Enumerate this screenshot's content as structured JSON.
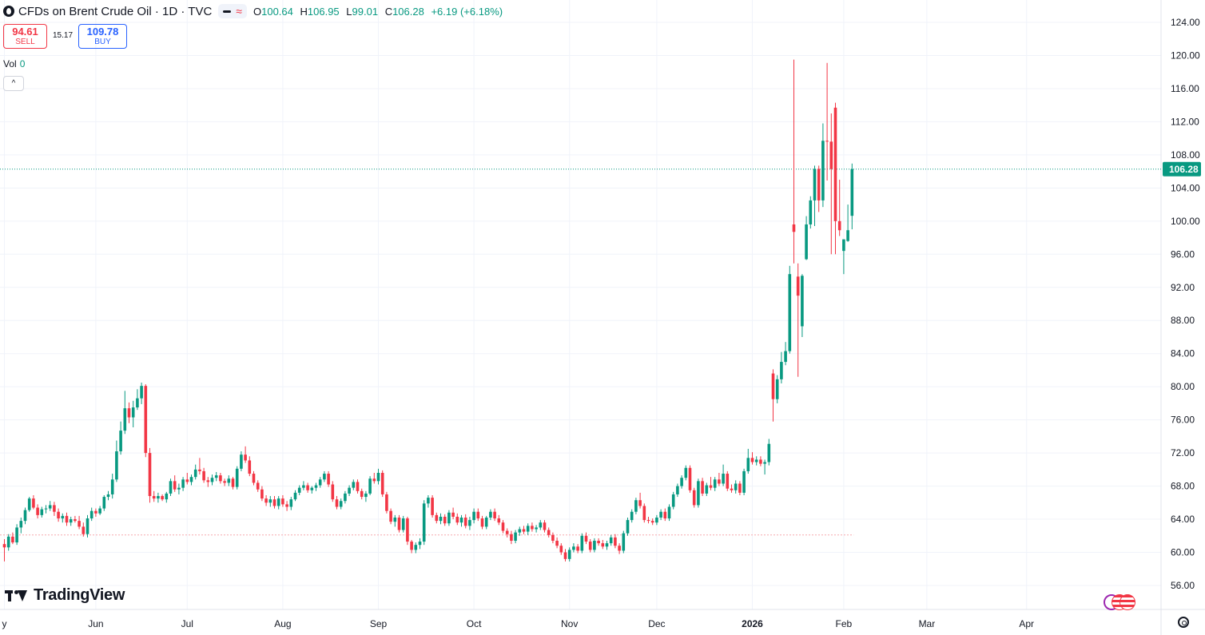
{
  "header": {
    "title": "CFDs on Brent Crude Oil · 1D · TVC",
    "ohlc": {
      "o_label": "O",
      "o": "100.64",
      "h_label": "H",
      "h": "106.95",
      "l_label": "L",
      "l": "99.01",
      "c_label": "C",
      "c": "106.28",
      "change": "+6.19 (+6.18%)"
    }
  },
  "trade": {
    "sell_price": "94.61",
    "sell_label": "SELL",
    "spread": "15.17",
    "buy_price": "109.78",
    "buy_label": "BUY"
  },
  "volume": {
    "label": "Vol",
    "value": "0"
  },
  "collapse_icon": "chevron-up-icon",
  "brand": {
    "name": "TradingView"
  },
  "colors": {
    "up": "#089981",
    "down": "#f23645",
    "grid": "#f0f3fa",
    "text": "#131722"
  },
  "chart_data": {
    "type": "candlestick",
    "ylim": [
      54,
      126
    ],
    "y_ticks": [
      56,
      60,
      64,
      68,
      72,
      76,
      80,
      84,
      88,
      92,
      96,
      100,
      104,
      108,
      112,
      116,
      120,
      124
    ],
    "y_tick_labels": [
      "56.00",
      "60.00",
      "64.00",
      "68.00",
      "72.00",
      "76.00",
      "80.00",
      "84.00",
      "88.00",
      "92.00",
      "96.00",
      "100.00",
      "104.00",
      "108.00",
      "112.00",
      "116.00",
      "120.00",
      "124.00"
    ],
    "x_labels": [
      {
        "text": "y",
        "bar": 0
      },
      {
        "text": "Jun",
        "bar": 22
      },
      {
        "text": "Jul",
        "bar": 44
      },
      {
        "text": "Aug",
        "bar": 67
      },
      {
        "text": "Sep",
        "bar": 90
      },
      {
        "text": "Oct",
        "bar": 113
      },
      {
        "text": "Nov",
        "bar": 136
      },
      {
        "text": "Dec",
        "bar": 157
      },
      {
        "text": "2026",
        "bar": 180
      },
      {
        "text": "Feb",
        "bar": 202
      },
      {
        "text": "Mar",
        "bar": 222
      },
      {
        "text": "Apr",
        "bar": 246
      }
    ],
    "last_price": 106.28,
    "last_price_label": "106.28",
    "reference_price": 62.1,
    "ohlc": [
      [
        61.0,
        61.6,
        58.9,
        60.6
      ],
      [
        60.6,
        62.2,
        60.2,
        61.9
      ],
      [
        61.9,
        62.4,
        61.0,
        61.2
      ],
      [
        61.2,
        63.4,
        60.9,
        63.0
      ],
      [
        63.0,
        64.2,
        62.3,
        63.8
      ],
      [
        63.8,
        65.4,
        63.4,
        65.1
      ],
      [
        65.1,
        66.7,
        64.9,
        66.5
      ],
      [
        66.5,
        66.9,
        65.2,
        65.4
      ],
      [
        65.4,
        65.8,
        64.1,
        64.5
      ],
      [
        64.5,
        65.5,
        64.2,
        65.2
      ],
      [
        65.2,
        65.7,
        64.7,
        65.3
      ],
      [
        65.3,
        66.2,
        65.0,
        65.7
      ],
      [
        65.7,
        66.1,
        64.4,
        64.9
      ],
      [
        64.9,
        65.3,
        63.7,
        64.1
      ],
      [
        64.1,
        64.7,
        63.6,
        64.4
      ],
      [
        64.4,
        64.8,
        63.2,
        63.6
      ],
      [
        63.6,
        64.3,
        63.2,
        64.0
      ],
      [
        64.0,
        64.4,
        63.6,
        63.8
      ],
      [
        63.8,
        64.4,
        62.8,
        63.1
      ],
      [
        63.1,
        63.6,
        61.9,
        62.2
      ],
      [
        62.2,
        64.5,
        61.8,
        64.1
      ],
      [
        64.1,
        65.4,
        63.8,
        65.0
      ],
      [
        65.0,
        65.3,
        64.3,
        64.7
      ],
      [
        64.7,
        65.6,
        64.5,
        65.3
      ],
      [
        65.3,
        66.9,
        65.0,
        66.7
      ],
      [
        66.7,
        67.4,
        66.3,
        67.0
      ],
      [
        67.0,
        69.5,
        66.5,
        68.8
      ],
      [
        68.8,
        73.5,
        68.5,
        72.2
      ],
      [
        72.2,
        75.8,
        71.8,
        74.7
      ],
      [
        74.7,
        79.5,
        74.3,
        77.4
      ],
      [
        77.4,
        78.1,
        75.6,
        76.3
      ],
      [
        76.3,
        78.3,
        75.1,
        77.5
      ],
      [
        77.5,
        79.7,
        77.2,
        78.6
      ],
      [
        78.6,
        80.5,
        77.9,
        80.1
      ],
      [
        80.1,
        80.3,
        71.5,
        72.0
      ],
      [
        72.0,
        72.6,
        66.0,
        66.8
      ],
      [
        66.8,
        67.4,
        66.1,
        66.5
      ],
      [
        66.5,
        67.2,
        66.0,
        66.8
      ],
      [
        66.8,
        67.0,
        66.2,
        66.4
      ],
      [
        66.4,
        67.3,
        66.0,
        67.1
      ],
      [
        67.1,
        68.9,
        66.8,
        68.6
      ],
      [
        68.6,
        69.3,
        67.3,
        67.6
      ],
      [
        67.6,
        68.3,
        67.0,
        67.8
      ],
      [
        67.8,
        69.1,
        67.4,
        68.8
      ],
      [
        68.8,
        69.6,
        68.2,
        68.5
      ],
      [
        68.5,
        69.4,
        68.1,
        69.1
      ],
      [
        69.1,
        70.6,
        68.8,
        70.0
      ],
      [
        70.0,
        71.4,
        69.4,
        69.8
      ],
      [
        69.8,
        70.2,
        68.4,
        68.7
      ],
      [
        68.7,
        69.1,
        67.9,
        68.5
      ],
      [
        68.5,
        69.4,
        68.1,
        69.0
      ],
      [
        69.0,
        69.7,
        68.6,
        69.3
      ],
      [
        69.3,
        69.6,
        68.3,
        68.6
      ],
      [
        68.6,
        68.9,
        68.0,
        68.4
      ],
      [
        68.4,
        69.3,
        68.0,
        68.9
      ],
      [
        68.9,
        69.1,
        67.6,
        67.9
      ],
      [
        67.9,
        70.4,
        67.6,
        70.1
      ],
      [
        70.1,
        72.2,
        69.8,
        71.8
      ],
      [
        71.8,
        72.8,
        70.8,
        71.1
      ],
      [
        71.1,
        71.6,
        69.2,
        69.5
      ],
      [
        69.5,
        69.8,
        68.1,
        68.4
      ],
      [
        68.4,
        68.7,
        67.3,
        67.6
      ],
      [
        67.6,
        68.0,
        66.2,
        66.5
      ],
      [
        66.5,
        66.9,
        65.6,
        66.0
      ],
      [
        66.0,
        66.8,
        65.5,
        66.4
      ],
      [
        66.4,
        66.8,
        65.3,
        65.6
      ],
      [
        65.6,
        66.8,
        65.2,
        66.5
      ],
      [
        66.5,
        66.9,
        65.5,
        65.8
      ],
      [
        65.8,
        66.2,
        65.0,
        65.5
      ],
      [
        65.5,
        66.7,
        65.1,
        66.4
      ],
      [
        66.4,
        67.5,
        66.2,
        67.2
      ],
      [
        67.2,
        68.1,
        66.9,
        67.8
      ],
      [
        67.8,
        68.6,
        67.5,
        68.1
      ],
      [
        68.1,
        68.4,
        67.2,
        67.5
      ],
      [
        67.5,
        68.0,
        67.1,
        67.8
      ],
      [
        67.8,
        68.4,
        67.4,
        68.1
      ],
      [
        68.1,
        69.1,
        67.8,
        68.8
      ],
      [
        68.8,
        69.8,
        68.5,
        69.5
      ],
      [
        69.5,
        69.8,
        67.9,
        68.2
      ],
      [
        68.2,
        68.6,
        66.1,
        66.4
      ],
      [
        66.4,
        66.8,
        65.2,
        65.5
      ],
      [
        65.5,
        66.5,
        65.2,
        66.2
      ],
      [
        66.2,
        67.4,
        65.9,
        67.1
      ],
      [
        67.1,
        68.1,
        66.8,
        67.8
      ],
      [
        67.8,
        68.8,
        67.5,
        68.5
      ],
      [
        68.5,
        68.8,
        67.1,
        67.4
      ],
      [
        67.4,
        67.7,
        66.4,
        66.7
      ],
      [
        66.7,
        67.4,
        66.1,
        67.1
      ],
      [
        67.1,
        69.2,
        66.9,
        68.9
      ],
      [
        68.9,
        69.6,
        68.3,
        68.6
      ],
      [
        68.6,
        70.1,
        68.2,
        69.6
      ],
      [
        69.6,
        69.9,
        66.7,
        67.0
      ],
      [
        67.0,
        67.3,
        64.7,
        65.0
      ],
      [
        65.0,
        65.3,
        63.4,
        63.7
      ],
      [
        63.7,
        64.5,
        63.1,
        64.2
      ],
      [
        64.2,
        64.5,
        62.4,
        62.7
      ],
      [
        62.7,
        64.4,
        62.4,
        64.1
      ],
      [
        64.1,
        64.3,
        60.9,
        61.3
      ],
      [
        61.3,
        61.5,
        59.9,
        60.3
      ],
      [
        60.3,
        61.2,
        59.9,
        60.9
      ],
      [
        60.9,
        61.7,
        60.4,
        61.3
      ],
      [
        61.3,
        66.3,
        60.9,
        65.9
      ],
      [
        65.9,
        66.9,
        65.4,
        66.6
      ],
      [
        66.6,
        66.9,
        64.2,
        64.5
      ],
      [
        64.5,
        64.8,
        63.5,
        63.8
      ],
      [
        63.8,
        64.7,
        63.4,
        64.3
      ],
      [
        64.3,
        64.6,
        63.2,
        63.5
      ],
      [
        63.5,
        65.1,
        63.2,
        64.8
      ],
      [
        64.8,
        65.4,
        64.0,
        64.3
      ],
      [
        64.3,
        64.7,
        63.3,
        63.6
      ],
      [
        63.6,
        64.5,
        63.1,
        64.2
      ],
      [
        64.2,
        64.6,
        62.9,
        63.2
      ],
      [
        63.2,
        64.3,
        62.7,
        63.9
      ],
      [
        63.9,
        65.3,
        63.5,
        64.9
      ],
      [
        64.9,
        65.3,
        63.8,
        64.1
      ],
      [
        64.1,
        64.4,
        62.8,
        63.1
      ],
      [
        63.1,
        64.4,
        62.8,
        64.2
      ],
      [
        64.2,
        65.2,
        63.9,
        64.9
      ],
      [
        64.9,
        65.3,
        63.8,
        64.1
      ],
      [
        64.1,
        64.5,
        63.3,
        63.6
      ],
      [
        63.6,
        63.9,
        62.3,
        62.6
      ],
      [
        62.6,
        62.9,
        61.8,
        62.2
      ],
      [
        62.2,
        62.6,
        61.0,
        61.4
      ],
      [
        61.4,
        62.7,
        61.1,
        62.4
      ],
      [
        62.4,
        63.1,
        62.0,
        62.8
      ],
      [
        62.8,
        63.2,
        62.2,
        62.5
      ],
      [
        62.5,
        63.5,
        62.1,
        63.2
      ],
      [
        63.2,
        63.6,
        62.5,
        62.8
      ],
      [
        62.8,
        63.3,
        62.4,
        63.0
      ],
      [
        63.0,
        63.9,
        62.7,
        63.6
      ],
      [
        63.6,
        63.9,
        62.4,
        62.7
      ],
      [
        62.7,
        63.0,
        61.8,
        62.1
      ],
      [
        62.1,
        62.4,
        61.1,
        61.4
      ],
      [
        61.4,
        61.8,
        60.5,
        60.8
      ],
      [
        60.8,
        61.1,
        59.7,
        60.0
      ],
      [
        60.0,
        60.4,
        58.9,
        59.2
      ],
      [
        59.2,
        60.6,
        58.9,
        60.3
      ],
      [
        60.3,
        61.1,
        60.0,
        60.7
      ],
      [
        60.7,
        61.0,
        59.9,
        60.2
      ],
      [
        60.2,
        62.3,
        59.9,
        62.0
      ],
      [
        62.0,
        62.4,
        61.0,
        61.3
      ],
      [
        61.3,
        61.6,
        60.0,
        60.3
      ],
      [
        60.3,
        61.7,
        60.0,
        61.4
      ],
      [
        61.4,
        61.7,
        60.8,
        61.1
      ],
      [
        61.1,
        61.5,
        60.4,
        60.7
      ],
      [
        60.7,
        61.4,
        60.3,
        61.1
      ],
      [
        61.1,
        62.1,
        60.8,
        61.8
      ],
      [
        61.8,
        62.2,
        60.5,
        60.8
      ],
      [
        60.8,
        61.1,
        59.8,
        60.2
      ],
      [
        60.2,
        62.6,
        59.9,
        62.3
      ],
      [
        62.3,
        64.2,
        62.0,
        63.9
      ],
      [
        63.9,
        65.2,
        63.6,
        64.9
      ],
      [
        64.9,
        66.6,
        64.6,
        66.3
      ],
      [
        66.3,
        67.2,
        65.3,
        65.6
      ],
      [
        65.6,
        65.9,
        63.6,
        63.9
      ],
      [
        63.9,
        64.3,
        63.5,
        63.8
      ],
      [
        63.8,
        64.1,
        63.3,
        63.6
      ],
      [
        63.6,
        64.5,
        63.3,
        64.2
      ],
      [
        64.2,
        65.2,
        63.9,
        64.9
      ],
      [
        64.9,
        65.3,
        63.8,
        64.1
      ],
      [
        64.1,
        65.8,
        63.8,
        65.5
      ],
      [
        65.5,
        67.3,
        65.2,
        67.0
      ],
      [
        67.0,
        68.3,
        66.7,
        68.0
      ],
      [
        68.0,
        69.3,
        67.7,
        69.0
      ],
      [
        69.0,
        70.5,
        68.7,
        70.2
      ],
      [
        70.2,
        70.5,
        67.2,
        67.5
      ],
      [
        67.5,
        67.8,
        65.4,
        65.7
      ],
      [
        65.7,
        68.9,
        65.4,
        68.6
      ],
      [
        68.6,
        69.0,
        66.8,
        67.1
      ],
      [
        67.1,
        68.4,
        66.8,
        68.1
      ],
      [
        68.1,
        69.1,
        67.5,
        67.8
      ],
      [
        67.8,
        69.1,
        67.4,
        68.8
      ],
      [
        68.8,
        69.6,
        68.0,
        68.3
      ],
      [
        68.3,
        70.6,
        68.0,
        69.5
      ],
      [
        69.5,
        69.8,
        67.4,
        67.7
      ],
      [
        67.7,
        68.2,
        67.2,
        67.5
      ],
      [
        67.5,
        68.7,
        67.1,
        68.3
      ],
      [
        68.3,
        68.6,
        66.9,
        67.2
      ],
      [
        67.2,
        70.1,
        66.9,
        69.8
      ],
      [
        69.8,
        72.5,
        69.5,
        71.4
      ],
      [
        71.4,
        72.1,
        70.6,
        70.9
      ],
      [
        70.9,
        71.6,
        70.5,
        71.2
      ],
      [
        71.2,
        71.6,
        70.4,
        70.7
      ],
      [
        70.7,
        71.2,
        69.4,
        70.9
      ],
      [
        70.9,
        73.7,
        70.5,
        73.1
      ],
      [
        81.6,
        82.1,
        75.8,
        78.5
      ],
      [
        78.5,
        81.4,
        78.0,
        80.9
      ],
      [
        80.9,
        84.2,
        80.4,
        83.0
      ],
      [
        83.0,
        85.4,
        82.6,
        84.3
      ],
      [
        84.3,
        94.6,
        84.0,
        93.6
      ],
      [
        99.6,
        119.5,
        94.9,
        98.7
      ],
      [
        93.3,
        94.9,
        81.2,
        91.0
      ],
      [
        87.3,
        93.6,
        86.0,
        93.4
      ],
      [
        95.4,
        100.6,
        95.3,
        99.6
      ],
      [
        99.6,
        103.0,
        99.1,
        102.5
      ],
      [
        102.5,
        106.7,
        99.4,
        106.3
      ],
      [
        106.3,
        106.7,
        101.1,
        102.5
      ],
      [
        102.5,
        111.8,
        101.7,
        109.7
      ],
      [
        109.7,
        119.1,
        104.9,
        109.6
      ],
      [
        109.6,
        113.0,
        96.0,
        106.3
      ],
      [
        113.7,
        114.3,
        96.0,
        100.0
      ],
      [
        100.0,
        105.0,
        98.2,
        98.9
      ],
      [
        96.4,
        97.8,
        93.6,
        97.8
      ],
      [
        97.6,
        102.0,
        97.5,
        98.9
      ],
      [
        100.64,
        106.95,
        99.01,
        106.28
      ]
    ]
  }
}
